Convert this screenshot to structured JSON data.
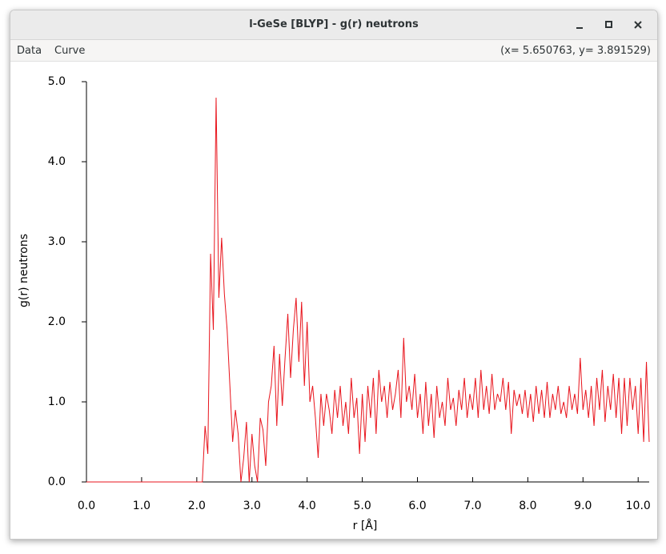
{
  "window": {
    "title": "l-GeSe [BLYP] - g(r) neutrons",
    "menu": [
      "Data",
      "Curve"
    ],
    "status": "(x= 5.650763, y= 3.891529)"
  },
  "chart_data": {
    "type": "line",
    "color": "#e8141c",
    "x_label": "r [Å]",
    "y_label": "g(r) neutrons",
    "xlim": [
      0,
      10.2
    ],
    "ylim": [
      0,
      5.0
    ],
    "xticks": [
      {
        "value": 0,
        "label": "0.0"
      },
      {
        "value": 1,
        "label": "1.0"
      },
      {
        "value": 2,
        "label": "2.0"
      },
      {
        "value": 3,
        "label": "3.0"
      },
      {
        "value": 4,
        "label": "4.0"
      },
      {
        "value": 5,
        "label": "5.0"
      },
      {
        "value": 6,
        "label": "6.0"
      },
      {
        "value": 7,
        "label": "7.0"
      },
      {
        "value": 8,
        "label": "8.0"
      },
      {
        "value": 9,
        "label": "9.0"
      },
      {
        "value": 10,
        "label": "10.0"
      }
    ],
    "yticks": [
      {
        "value": 0,
        "label": "0.0"
      },
      {
        "value": 1,
        "label": "1.0"
      },
      {
        "value": 2,
        "label": "2.0"
      },
      {
        "value": 3,
        "label": "3.0"
      },
      {
        "value": 4,
        "label": "4.0"
      },
      {
        "value": 5,
        "label": "5.0"
      }
    ],
    "x": [
      0,
      2.1,
      2.15,
      2.2,
      2.25,
      2.3,
      2.35,
      2.4,
      2.45,
      2.5,
      2.55,
      2.6,
      2.65,
      2.7,
      2.75,
      2.8,
      2.85,
      2.9,
      2.95,
      3.0,
      3.05,
      3.1,
      3.15,
      3.2,
      3.25,
      3.3,
      3.35,
      3.4,
      3.45,
      3.5,
      3.55,
      3.6,
      3.65,
      3.7,
      3.75,
      3.8,
      3.85,
      3.9,
      3.95,
      4.0,
      4.05,
      4.1,
      4.15,
      4.2,
      4.25,
      4.3,
      4.35,
      4.4,
      4.45,
      4.5,
      4.55,
      4.6,
      4.65,
      4.7,
      4.75,
      4.8,
      4.85,
      4.9,
      4.95,
      5.0,
      5.05,
      5.1,
      5.15,
      5.2,
      5.25,
      5.3,
      5.35,
      5.4,
      5.45,
      5.5,
      5.55,
      5.6,
      5.65,
      5.7,
      5.75,
      5.8,
      5.85,
      5.9,
      5.95,
      6.0,
      6.05,
      6.1,
      6.15,
      6.2,
      6.25,
      6.3,
      6.35,
      6.4,
      6.45,
      6.5,
      6.55,
      6.6,
      6.65,
      6.7,
      6.75,
      6.8,
      6.85,
      6.9,
      6.95,
      7.0,
      7.05,
      7.1,
      7.15,
      7.2,
      7.25,
      7.3,
      7.35,
      7.4,
      7.45,
      7.5,
      7.55,
      7.6,
      7.65,
      7.7,
      7.75,
      7.8,
      7.85,
      7.9,
      7.95,
      8.0,
      8.05,
      8.1,
      8.15,
      8.2,
      8.25,
      8.3,
      8.35,
      8.4,
      8.45,
      8.5,
      8.55,
      8.6,
      8.65,
      8.7,
      8.75,
      8.8,
      8.85,
      8.9,
      8.95,
      9.0,
      9.05,
      9.1,
      9.15,
      9.2,
      9.25,
      9.3,
      9.35,
      9.4,
      9.45,
      9.5,
      9.55,
      9.6,
      9.65,
      9.7,
      9.75,
      9.8,
      9.85,
      9.9,
      9.95,
      10.0,
      10.05,
      10.1,
      10.15,
      10.2
    ],
    "values": [
      0,
      0,
      0.7,
      0.35,
      2.85,
      1.9,
      4.8,
      2.3,
      3.05,
      2.35,
      1.9,
      1.2,
      0.5,
      0.9,
      0.6,
      0.0,
      0.3,
      0.75,
      0.0,
      0.6,
      0.2,
      0.0,
      0.8,
      0.65,
      0.2,
      1.0,
      1.2,
      1.7,
      0.7,
      1.6,
      0.95,
      1.55,
      2.1,
      1.3,
      1.9,
      2.3,
      1.5,
      2.25,
      1.2,
      2.0,
      1.0,
      1.2,
      0.8,
      0.3,
      1.1,
      0.7,
      1.1,
      0.9,
      0.6,
      1.15,
      0.8,
      1.2,
      0.7,
      1.0,
      0.6,
      1.3,
      0.8,
      1.05,
      0.35,
      1.1,
      0.5,
      1.2,
      0.8,
      1.3,
      0.6,
      1.4,
      1.0,
      1.2,
      0.8,
      1.25,
      0.9,
      1.1,
      1.4,
      0.8,
      1.8,
      1.0,
      1.2,
      0.9,
      1.35,
      0.8,
      1.1,
      0.6,
      1.25,
      0.7,
      1.1,
      0.55,
      1.2,
      0.8,
      1.0,
      0.7,
      1.3,
      0.9,
      1.05,
      0.7,
      1.15,
      0.9,
      1.3,
      0.8,
      1.1,
      0.9,
      1.3,
      0.8,
      1.4,
      0.9,
      1.2,
      0.85,
      1.35,
      0.9,
      1.1,
      1.0,
      1.3,
      0.9,
      1.25,
      0.6,
      1.15,
      0.95,
      1.1,
      0.85,
      1.15,
      0.8,
      1.1,
      0.75,
      1.2,
      0.85,
      1.15,
      0.8,
      1.25,
      0.8,
      1.1,
      0.9,
      1.2,
      0.85,
      1.0,
      0.8,
      1.2,
      0.9,
      1.1,
      0.85,
      1.55,
      0.9,
      1.15,
      0.8,
      1.2,
      0.7,
      1.3,
      0.9,
      1.4,
      0.75,
      1.2,
      0.9,
      1.35,
      0.8,
      1.3,
      0.6,
      1.3,
      0.7,
      1.3,
      0.9,
      1.2,
      0.6,
      1.3,
      0.5,
      1.5,
      0.5
    ]
  }
}
